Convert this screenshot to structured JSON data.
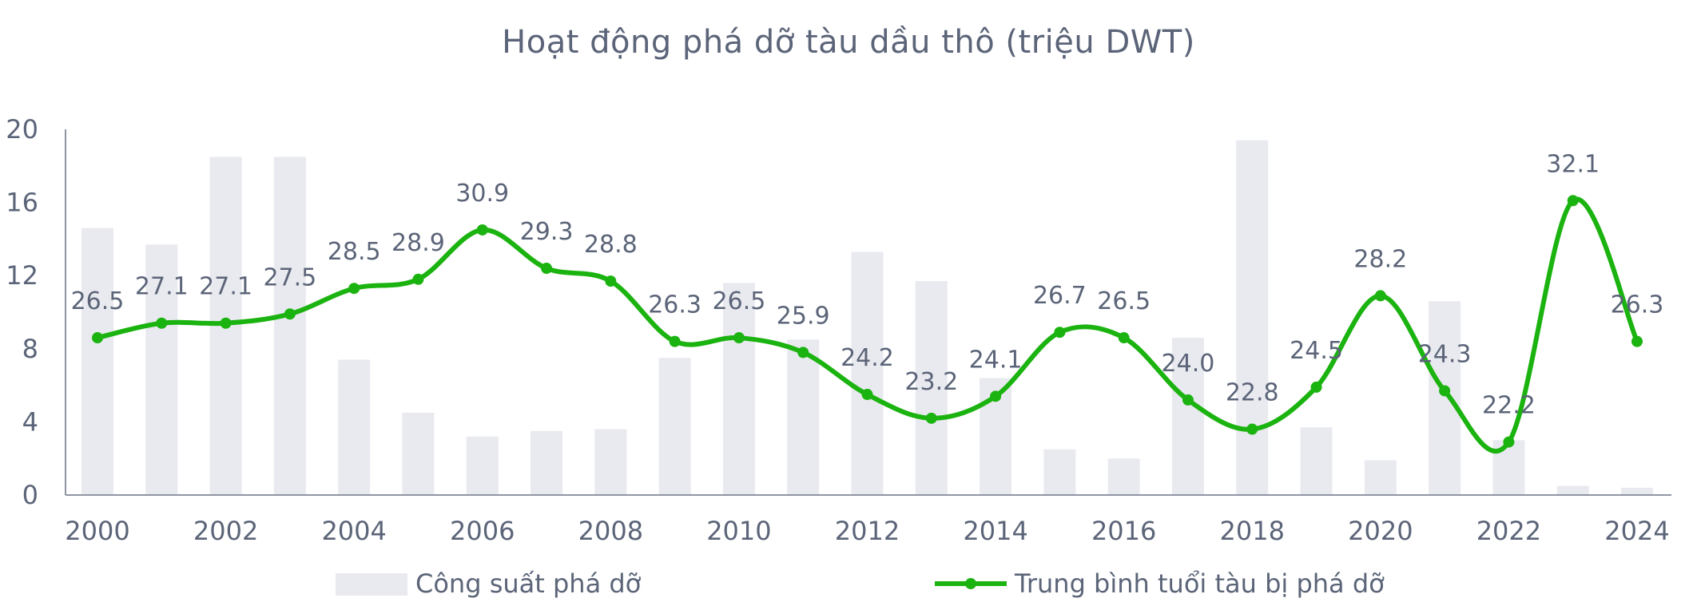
{
  "chart_data": {
    "type": "bar+line",
    "title": "Hoạt động phá dỡ tàu dầu thô (triệu DWT)",
    "years": [
      "2000",
      "2001",
      "2002",
      "2003",
      "2004",
      "2005",
      "2006",
      "2007",
      "2008",
      "2009",
      "2010",
      "2011",
      "2012",
      "2013",
      "2014",
      "2015",
      "2016",
      "2017",
      "2018",
      "2019",
      "2020",
      "2021",
      "2022",
      "2023",
      "2024"
    ],
    "x_tick_labels": [
      "2000",
      "2002",
      "2004",
      "2006",
      "2008",
      "2010",
      "2012",
      "2014",
      "2016",
      "2018",
      "2020",
      "2022",
      "2024"
    ],
    "y_tick_labels": [
      "0",
      "4",
      "8",
      "12",
      "16",
      "20"
    ],
    "ylim": [
      0,
      20
    ],
    "series": [
      {
        "name": "Công suất phá dỡ",
        "type": "bar",
        "color": "#e9eaef",
        "values": [
          14.6,
          13.7,
          18.5,
          18.5,
          7.4,
          4.5,
          3.2,
          3.5,
          3.6,
          7.5,
          11.6,
          8.5,
          13.3,
          11.7,
          6.4,
          2.5,
          2.0,
          8.6,
          19.4,
          3.7,
          1.9,
          10.6,
          3.0,
          0.5,
          0.4
        ]
      },
      {
        "name": "Trung bình tuổi tàu bị phá dỡ",
        "type": "line",
        "color": "#1bb310",
        "values": [
          8.6,
          9.4,
          9.4,
          9.9,
          11.3,
          11.8,
          14.5,
          12.4,
          11.7,
          8.4,
          8.6,
          7.8,
          5.5,
          4.2,
          5.4,
          8.9,
          8.6,
          5.2,
          3.6,
          5.9,
          10.9,
          5.7,
          2.9,
          16.1,
          8.4
        ]
      }
    ],
    "line_data_labels": [
      "26.5",
      "27.1",
      "27.1",
      "27.5",
      "28.5",
      "28.9",
      "30.9",
      "29.3",
      "28.8",
      "26.3",
      "26.5",
      "25.9",
      "24.2",
      "23.2",
      "24.1",
      "26.7",
      "26.5",
      "24.0",
      "22.8",
      "24.5",
      "28.2",
      "24.3",
      "22.2",
      "32.1",
      "26.3"
    ],
    "legend_position": "bottom",
    "grid": false
  }
}
